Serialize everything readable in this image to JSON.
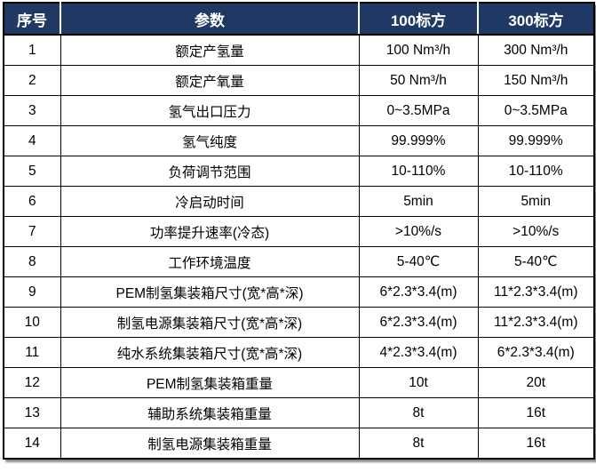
{
  "colors": {
    "header_bg": "#1f3864",
    "header_text": "#ffffff",
    "grid_border": "#000000",
    "body_bg": "#ffffff",
    "body_text": "#000000"
  },
  "table": {
    "columns": [
      "序号",
      "参数",
      "100标方",
      "300标方"
    ],
    "rows": [
      {
        "no": "1",
        "param": "额定产氢量",
        "v100": "100 Nm³/h",
        "v300": "300 Nm³/h"
      },
      {
        "no": "2",
        "param": "额定产氧量",
        "v100": "50 Nm³/h",
        "v300": "150 Nm³/h"
      },
      {
        "no": "3",
        "param": "氢气出口压力",
        "v100": "0~3.5MPa",
        "v300": "0~3.5MPa"
      },
      {
        "no": "4",
        "param": "氢气纯度",
        "v100": "99.999%",
        "v300": "99.999%"
      },
      {
        "no": "5",
        "param": "负荷调节范围",
        "v100": "10-110%",
        "v300": "10-110%"
      },
      {
        "no": "6",
        "param": "冷启动时间",
        "v100": "5min",
        "v300": "5min"
      },
      {
        "no": "7",
        "param": "功率提升速率(冷态)",
        "v100": ">10%/s",
        "v300": ">10%/s"
      },
      {
        "no": "8",
        "param": "工作环境温度",
        "v100": "5-40℃",
        "v300": "5-40℃"
      },
      {
        "no": "9",
        "param": "PEM制氢集装箱尺寸(宽*高*深)",
        "v100": "6*2.3*3.4(m)",
        "v300": "11*2.3*3.4(m)"
      },
      {
        "no": "10",
        "param": "制氢电源集装箱尺寸(宽*高*深)",
        "v100": "6*2.3*3.4(m)",
        "v300": "11*2.3*3.4(m)"
      },
      {
        "no": "11",
        "param": "纯水系统集装箱尺寸(宽*高*深)",
        "v100": "4*2.3*3.4(m)",
        "v300": "6*2.3*3.4(m)"
      },
      {
        "no": "12",
        "param": "PEM制氢集装箱重量",
        "v100": "10t",
        "v300": "20t"
      },
      {
        "no": "13",
        "param": "辅助系统集装箱重量",
        "v100": "8t",
        "v300": "16t"
      },
      {
        "no": "14",
        "param": "制氢电源集装箱重量",
        "v100": "8t",
        "v300": "16t"
      }
    ]
  }
}
